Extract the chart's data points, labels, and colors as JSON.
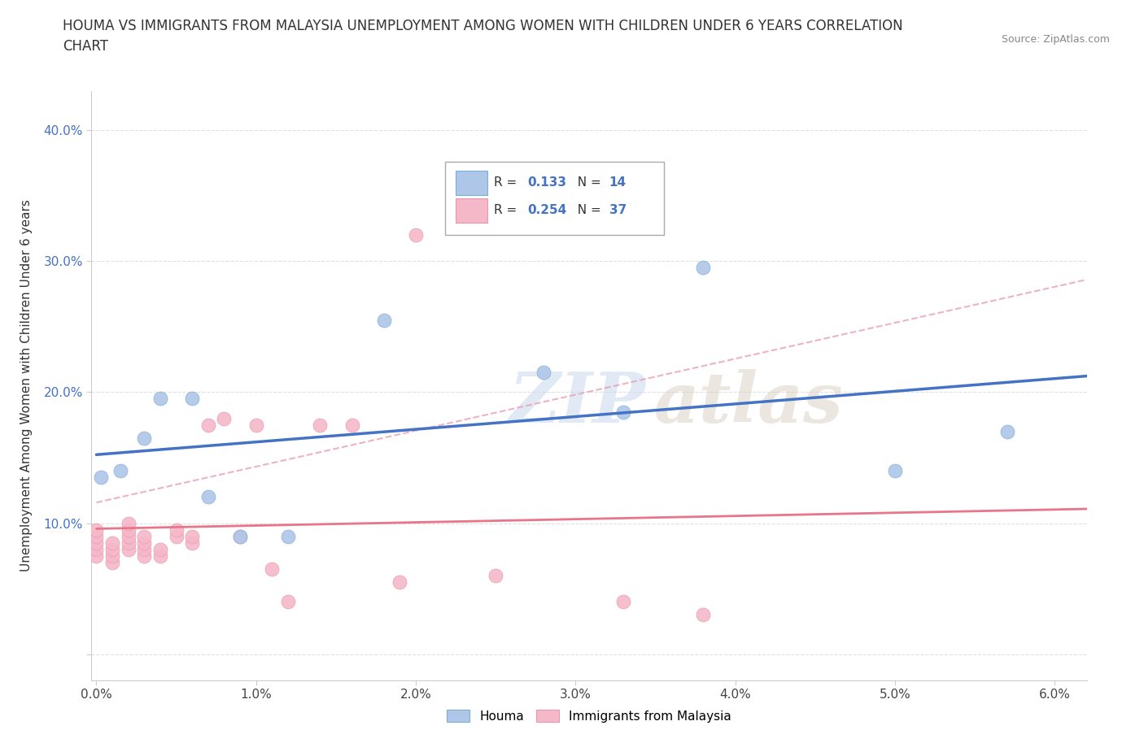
{
  "title": "HOUMA VS IMMIGRANTS FROM MALAYSIA UNEMPLOYMENT AMONG WOMEN WITH CHILDREN UNDER 6 YEARS CORRELATION\nCHART",
  "source": "Source: ZipAtlas.com",
  "ylabel": "Unemployment Among Women with Children Under 6 years",
  "xlim": [
    -0.0003,
    0.062
  ],
  "ylim": [
    -0.02,
    0.43
  ],
  "yticks": [
    0.0,
    0.1,
    0.2,
    0.3,
    0.4
  ],
  "ytick_labels": [
    "",
    "10.0%",
    "20.0%",
    "30.0%",
    "40.0%"
  ],
  "xticks": [
    0.0,
    0.01,
    0.02,
    0.03,
    0.04,
    0.05,
    0.06
  ],
  "xtick_labels": [
    "0.0%",
    "1.0%",
    "2.0%",
    "3.0%",
    "4.0%",
    "5.0%",
    "6.0%"
  ],
  "houma_x": [
    0.0003,
    0.0015,
    0.003,
    0.004,
    0.006,
    0.007,
    0.009,
    0.012,
    0.018,
    0.028,
    0.033,
    0.038,
    0.05,
    0.057
  ],
  "houma_y": [
    0.135,
    0.14,
    0.165,
    0.195,
    0.195,
    0.12,
    0.09,
    0.09,
    0.255,
    0.215,
    0.185,
    0.295,
    0.14,
    0.17
  ],
  "malaysia_x": [
    0.0,
    0.0,
    0.0,
    0.0,
    0.0,
    0.001,
    0.001,
    0.001,
    0.001,
    0.002,
    0.002,
    0.002,
    0.002,
    0.002,
    0.003,
    0.003,
    0.003,
    0.003,
    0.004,
    0.004,
    0.005,
    0.005,
    0.006,
    0.006,
    0.007,
    0.008,
    0.009,
    0.01,
    0.011,
    0.012,
    0.014,
    0.016,
    0.019,
    0.02,
    0.025,
    0.033,
    0.038
  ],
  "malaysia_y": [
    0.075,
    0.08,
    0.085,
    0.09,
    0.095,
    0.07,
    0.075,
    0.08,
    0.085,
    0.08,
    0.085,
    0.09,
    0.095,
    0.1,
    0.075,
    0.08,
    0.085,
    0.09,
    0.075,
    0.08,
    0.09,
    0.095,
    0.085,
    0.09,
    0.175,
    0.18,
    0.09,
    0.175,
    0.065,
    0.04,
    0.175,
    0.175,
    0.055,
    0.32,
    0.06,
    0.04,
    0.03
  ],
  "houma_color": "#aec6e8",
  "houma_edge_color": "#7bafd4",
  "malaysia_color": "#f5b8c8",
  "malaysia_edge_color": "#e898b0",
  "houma_line_color": "#4472c4",
  "malaysia_line_color": "#e8758a",
  "malaysia_dashed_color": "#e8a0b4",
  "houma_R": 0.133,
  "houma_N": 14,
  "malaysia_R": 0.254,
  "malaysia_N": 37,
  "background_color": "#ffffff",
  "grid_color": "#cccccc",
  "watermark_zip": "ZIP",
  "watermark_atlas": "atlas"
}
